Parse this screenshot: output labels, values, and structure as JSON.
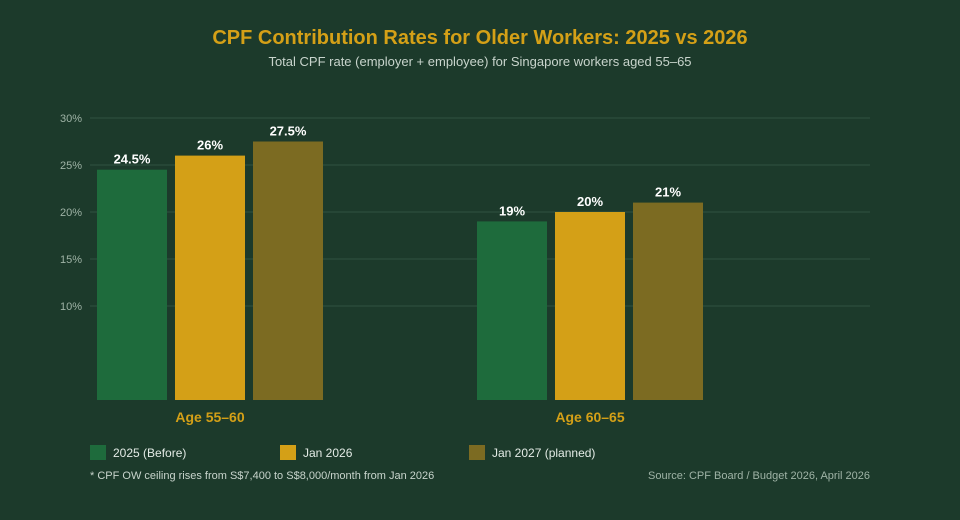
{
  "chart_data": {
    "type": "bar",
    "title": "CPF Contribution Rates for Older Workers: 2025 vs 2026",
    "subtitle": "Total CPF rate (employer + employee) for Singapore workers aged 55–65",
    "categories": [
      "Age 55–60",
      "Age 60–65"
    ],
    "series": [
      {
        "name": "2025 (Before)",
        "values": [
          24.5,
          19
        ],
        "labels": [
          "24.5%",
          "19%"
        ],
        "color": "#1e6b3c"
      },
      {
        "name": "Jan 2026",
        "values": [
          26,
          20
        ],
        "labels": [
          "26%",
          "20%"
        ],
        "color": "#d4a017"
      },
      {
        "name": "Jan 2027 (planned)",
        "values": [
          27.5,
          21
        ],
        "labels": [
          "27.5%",
          "21%"
        ],
        "color": "#7c6b22"
      }
    ],
    "y_ticks": [
      {
        "value": 10,
        "label": "10%"
      },
      {
        "value": 15,
        "label": "15%"
      },
      {
        "value": 20,
        "label": "20%"
      },
      {
        "value": 25,
        "label": "25%"
      },
      {
        "value": 30,
        "label": "30%"
      }
    ],
    "ylim": [
      0,
      30
    ],
    "grid": true,
    "legend_position": "bottom-left",
    "footnote": "* CPF OW ceiling rises from S$7,400 to S$8,000/month from Jan 2026",
    "source": "Source: CPF Board / Budget 2026, April 2026"
  }
}
